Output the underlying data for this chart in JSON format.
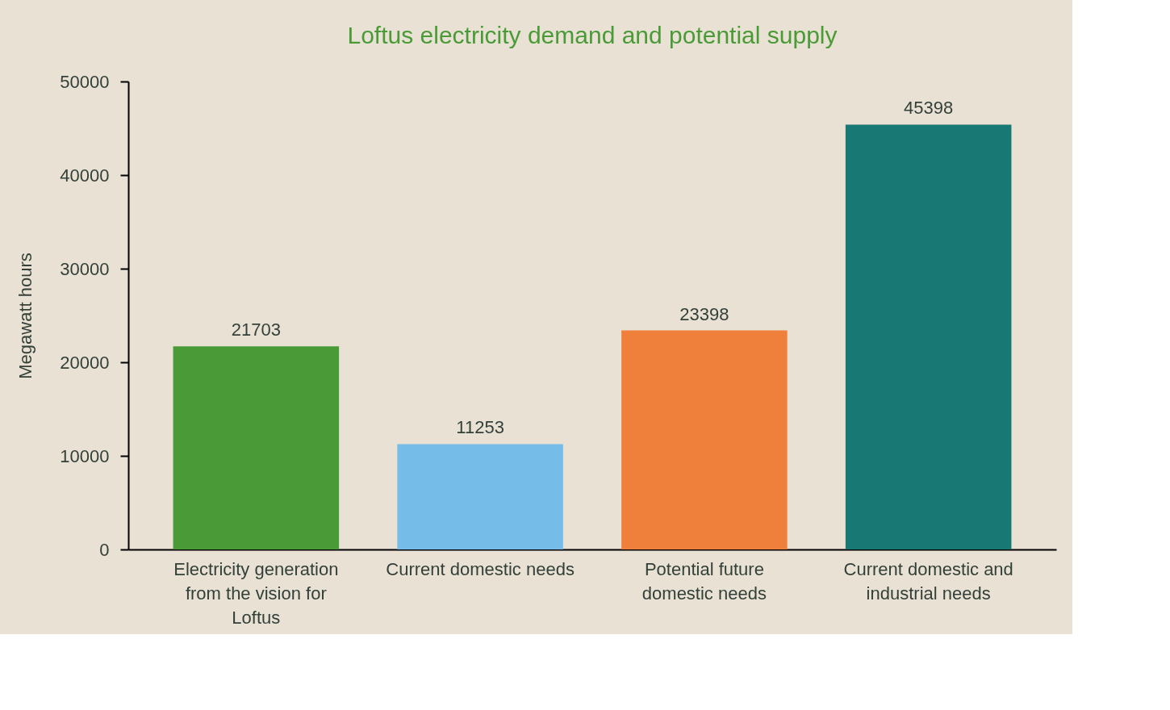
{
  "chart_data": {
    "type": "bar",
    "title": "Loftus electricity demand and potential supply",
    "ylabel": "Megawatt hours",
    "categories": [
      "Electricity generation from the vision for Loftus",
      "Current domestic needs",
      "Potential future domestic needs",
      "Current domestic and industrial needs"
    ],
    "values": [
      21703,
      11253,
      23398,
      45398
    ],
    "colors": [
      "#4a9a37",
      "#75bde8",
      "#ef803c",
      "#187873"
    ],
    "ylim": [
      0,
      50000
    ],
    "yticks": [
      0,
      10000,
      20000,
      30000,
      40000,
      50000
    ],
    "grid": false,
    "data_labels": true
  }
}
